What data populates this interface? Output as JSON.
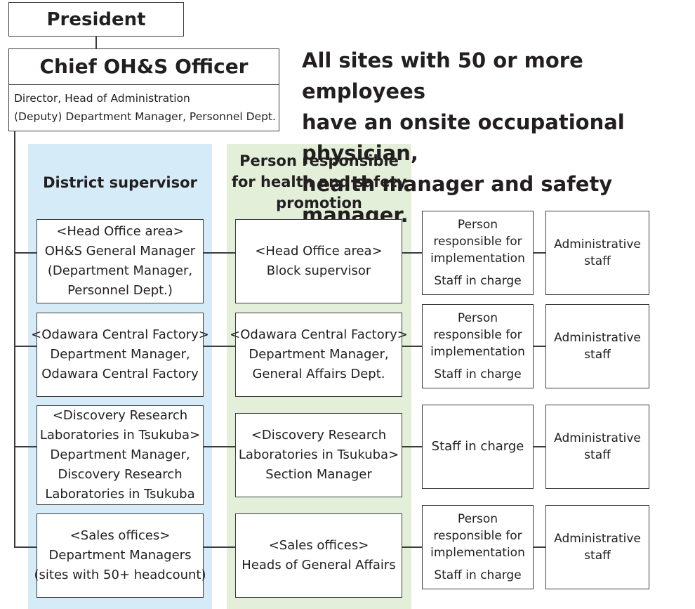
{
  "president": "President",
  "chief": {
    "title": "Chief OH&S Officer",
    "lines": [
      "Director, Head of Administration",
      "(Deputy) Department Manager, Personnel Dept."
    ]
  },
  "notice": [
    "All sites with 50 or more employees",
    "have an onsite occupational physician,",
    "health manager and safety manager."
  ],
  "columns": {
    "district": [
      "District supervisor"
    ],
    "promotion": [
      "Person responsible",
      "for health and safety",
      "promotion"
    ]
  },
  "rows": [
    {
      "district": [
        "<Head Office area>",
        "OH&S General Manager",
        "(Department Manager,",
        "Personnel Dept.)"
      ],
      "promotion": [
        "<Head Office area>",
        "Block supervisor"
      ],
      "implementation": [
        "Person",
        "responsible for",
        "implementation"
      ],
      "staff": "Staff in charge",
      "admin": [
        "Administrative",
        "staff"
      ]
    },
    {
      "district": [
        "<Odawara Central Factory>",
        "Department Manager,",
        "Odawara Central Factory"
      ],
      "promotion": [
        "<Odawara Central Factory>",
        "Department Manager,",
        "General Affairs Dept."
      ],
      "implementation": [
        "Person",
        "responsible for",
        "implementation"
      ],
      "staff": "Staff in charge",
      "admin": [
        "Administrative",
        "staff"
      ]
    },
    {
      "district": [
        "<Discovery Research",
        "Laboratories in Tsukuba>",
        "Department Manager,",
        "Discovery Research",
        "Laboratories in Tsukuba"
      ],
      "promotion": [
        "<Discovery Research",
        "Laboratories in Tsukuba>",
        "Section Manager"
      ],
      "implementation": [],
      "staff": "Staff in charge",
      "admin": [
        "Administrative",
        "staff"
      ]
    },
    {
      "district": [
        "<Sales offices>",
        "Department Managers",
        "(sites with 50+ headcount)"
      ],
      "promotion": [
        "<Sales offices>",
        "Heads of General Affairs"
      ],
      "implementation": [
        "Person",
        "responsible for",
        "implementation"
      ],
      "staff": "Staff in charge",
      "admin": [
        "Administrative",
        "staff"
      ]
    }
  ]
}
